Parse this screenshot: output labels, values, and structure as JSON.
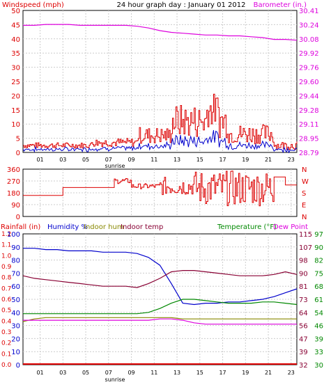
{
  "chart_data": [
    {
      "type": "line",
      "title": "24 hour graph day : January 01 2012",
      "left_axis_label": "Windspeed (mph)",
      "right_axis_label": "Barometer (in.)",
      "x_tick_labels": [
        "01",
        "03",
        "05",
        "07",
        "09",
        "11",
        "13",
        "15",
        "17",
        "19",
        "21",
        "23"
      ],
      "sunrise_label": "sunrise",
      "ylim_left": [
        0,
        50
      ],
      "y_ticks_left": [
        "0",
        "5",
        "10",
        "15",
        "20",
        "25",
        "30",
        "35",
        "40",
        "45",
        "50"
      ],
      "ylim_right": [
        28.79,
        30.41
      ],
      "y_ticks_right": [
        "28.79",
        "28.95",
        "29.11",
        "29.28",
        "29.44",
        "29.60",
        "29.76",
        "29.92",
        "30.08",
        "30.24",
        "30.41"
      ],
      "colors": {
        "windspeed_gust": "#dd0000",
        "windspeed_avg": "#0000cc",
        "barometer": "#dd00dd"
      },
      "series": [
        {
          "name": "Barometer (in.)",
          "color": "#dd00dd",
          "x": [
            0,
            1,
            2,
            3,
            4,
            5,
            6,
            7,
            8,
            9,
            10,
            11,
            12,
            13,
            14,
            15,
            16,
            17,
            18,
            19,
            20,
            21,
            22,
            23,
            24
          ],
          "y": [
            30.24,
            30.24,
            30.25,
            30.25,
            30.25,
            30.24,
            30.24,
            30.24,
            30.24,
            30.24,
            30.23,
            30.21,
            30.18,
            30.16,
            30.15,
            30.14,
            30.13,
            30.13,
            30.12,
            30.12,
            30.11,
            30.1,
            30.08,
            30.08,
            30.07
          ]
        }
      ]
    },
    {
      "type": "line",
      "y_ticks_left": [
        "0",
        "90",
        "180",
        "270",
        "360"
      ],
      "ylim": [
        0,
        360
      ],
      "direction_labels": [
        "N",
        "W",
        "S",
        "E",
        "N"
      ],
      "color": "#dd0000"
    },
    {
      "type": "line",
      "left_axis1_label": "Rainfall (in)",
      "left_axis2_label": "Humidity %",
      "left_axis3_label": "Indoor hum",
      "left_axis4_label": "Indoor temp",
      "right_axis1_label": "Temperature (°F)",
      "right_axis2_label": "Dew Point",
      "x_tick_labels": [
        "01",
        "03",
        "05",
        "07",
        "09",
        "11",
        "13",
        "15",
        "17",
        "19",
        "21",
        "23"
      ],
      "sunrise_label": "sunrise",
      "rain_ticks": [
        "0.0",
        "0.1",
        "0.2",
        "0.3",
        "0.4",
        "0.5",
        "0.6",
        "0.7",
        "0.8",
        "0.9",
        "1.0",
        "1.1",
        "1.2"
      ],
      "humidity_ticks": [
        "0",
        "10",
        "20",
        "30",
        "40",
        "50",
        "60",
        "70",
        "80",
        "90",
        "100"
      ],
      "temp_ticks": [
        "32",
        "39",
        "47",
        "56",
        "64",
        "73",
        "81",
        "90",
        "98",
        "107",
        "115"
      ],
      "dew_ticks": [
        "30",
        "33",
        "39",
        "46",
        "54",
        "61",
        "68",
        "75",
        "82",
        "90",
        "97"
      ],
      "colors": {
        "rainfall": "#dd0000",
        "humidity": "#0000cc",
        "indoor_hum": "#888800",
        "indoor_temp": "#880033",
        "temperature": "#008800",
        "dewpoint": "#dd00dd"
      },
      "series": [
        {
          "name": "Humidity %",
          "color": "#0000cc",
          "x": [
            0,
            1,
            2,
            3,
            4,
            5,
            6,
            7,
            8,
            9,
            10,
            11,
            12,
            13,
            14,
            15,
            16,
            17,
            18,
            19,
            20,
            21,
            22,
            23,
            24
          ],
          "y": [
            89,
            89,
            88,
            88,
            87,
            87,
            87,
            86,
            86,
            86,
            85,
            82,
            76,
            62,
            47,
            46,
            47,
            47,
            48,
            48,
            49,
            50,
            52,
            55,
            58
          ]
        },
        {
          "name": "Indoor hum",
          "color": "#888800",
          "x": [
            0,
            1,
            2,
            3,
            4,
            5,
            6,
            7,
            8,
            9,
            10,
            11,
            12,
            13,
            14,
            15,
            16,
            17,
            18,
            19,
            20,
            21,
            22,
            23,
            24
          ],
          "y": [
            33,
            35,
            36,
            36,
            36,
            36,
            36,
            36,
            36,
            36,
            36,
            36,
            36,
            36,
            35,
            35,
            35,
            35,
            35,
            35,
            35,
            35,
            35,
            35,
            35
          ]
        },
        {
          "name": "Indoor temp",
          "color": "#880033",
          "x": [
            0,
            1,
            2,
            3,
            4,
            5,
            6,
            7,
            8,
            9,
            10,
            11,
            12,
            13,
            14,
            15,
            16,
            17,
            18,
            19,
            20,
            21,
            22,
            23,
            24
          ],
          "y": [
            68,
            66,
            65,
            64,
            63,
            62,
            61,
            60,
            60,
            60,
            59,
            62,
            66,
            71,
            72,
            72,
            71,
            70,
            69,
            68,
            68,
            68,
            69,
            71,
            69
          ]
        },
        {
          "name": "Temperature (°F)",
          "color": "#008800",
          "x": [
            0,
            1,
            2,
            3,
            4,
            5,
            6,
            7,
            8,
            9,
            10,
            11,
            12,
            13,
            14,
            15,
            16,
            17,
            18,
            19,
            20,
            21,
            22,
            23,
            24
          ],
          "y": [
            39,
            39,
            39,
            39,
            39,
            39,
            39,
            39,
            39,
            39,
            39,
            40,
            43,
            47,
            50,
            50,
            49,
            48,
            47,
            47,
            47,
            48,
            48,
            47,
            46
          ]
        },
        {
          "name": "Dew Point",
          "color": "#dd00dd",
          "x": [
            0,
            1,
            2,
            3,
            4,
            5,
            6,
            7,
            8,
            9,
            10,
            11,
            12,
            13,
            14,
            15,
            16,
            17,
            18,
            19,
            20,
            21,
            22,
            23,
            24
          ],
          "y": [
            34,
            34,
            34,
            34,
            34,
            34,
            34,
            34,
            34,
            34,
            34,
            34,
            35,
            35,
            34,
            32,
            31,
            31,
            31,
            31,
            31,
            31,
            31,
            31,
            31
          ]
        }
      ]
    }
  ]
}
